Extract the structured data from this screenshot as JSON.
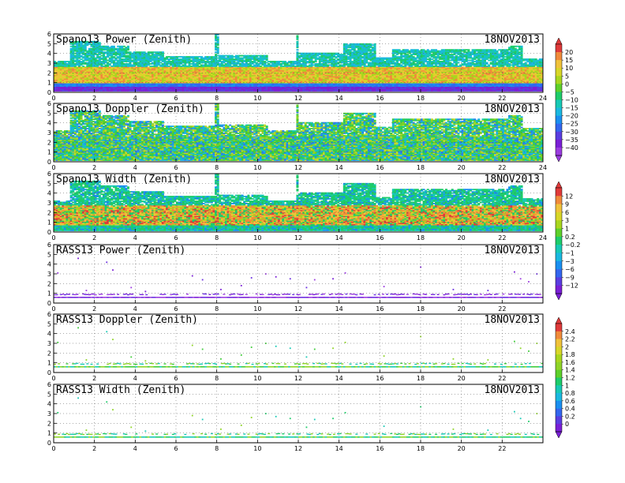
{
  "chart_data": {
    "type": "heatmap",
    "date": "18NOV2013",
    "x": {
      "min": 0,
      "max": 24,
      "ticks": [
        0,
        2,
        4,
        6,
        8,
        10,
        12,
        14,
        16,
        18,
        20,
        22,
        24
      ]
    },
    "y": {
      "min": 0,
      "max": 6,
      "ticks": [
        0,
        1,
        2,
        3,
        4,
        5,
        6
      ]
    },
    "grid": "dotted",
    "panels": [
      {
        "title": "Spano13 Power (Zenith)",
        "kind": "power",
        "x_ticks_shown": [
          0,
          2,
          4,
          6,
          8,
          10,
          12,
          14,
          16,
          18,
          20,
          22,
          24
        ]
      },
      {
        "title": "Spano13 Doppler (Zenith)",
        "kind": "doppler",
        "x_ticks_shown": [
          0,
          2,
          4,
          6,
          8,
          10,
          12,
          14,
          16,
          18,
          20,
          22,
          24
        ]
      },
      {
        "title": "Spano13 Width (Zenith)",
        "kind": "width",
        "x_ticks_shown": [
          0,
          2,
          4,
          6,
          8,
          10,
          12,
          14,
          16,
          18,
          20,
          22,
          24
        ]
      },
      {
        "title": "RASS13 Power (Zenith)",
        "kind": "rass_power",
        "x_ticks_shown": [
          0,
          2,
          4,
          6,
          8,
          10,
          12,
          14,
          16,
          18,
          20,
          22
        ]
      },
      {
        "title": "RASS13 Doppler (Zenith)",
        "kind": "rass_doppler",
        "x_ticks_shown": [
          0,
          2,
          4,
          6,
          8,
          10,
          12,
          14,
          16,
          18,
          20,
          22
        ]
      },
      {
        "title": "RASS13 Width (Zenith)",
        "kind": "rass_width",
        "x_ticks_shown": [
          0,
          2,
          4,
          6,
          8,
          10,
          12,
          14,
          16,
          18,
          20,
          22
        ]
      }
    ],
    "colorbars": [
      {
        "panels": [
          "Spano13 Power (Zenith)",
          "Spano13 Doppler (Zenith)"
        ],
        "labels": [
          "20",
          "15",
          "10",
          "5",
          "0",
          "−5",
          "−10",
          "−15",
          "−20",
          "−25",
          "−30",
          "−35",
          "−40"
        ]
      },
      {
        "panels": [
          "Spano13 Width (Zenith)",
          "RASS13 Power (Zenith)"
        ],
        "labels": [
          "12",
          "9",
          "6",
          "3",
          "1",
          "0.2",
          "−0.2",
          "−1",
          "−3",
          "−6",
          "−9",
          "−12"
        ]
      },
      {
        "panels": [
          "RASS13 Doppler (Zenith)",
          "RASS13 Width (Zenith)"
        ],
        "labels": [
          "2.4",
          "2.2",
          "2",
          "1.8",
          "1.6",
          "1.4",
          "1.2",
          "1",
          "0.8",
          "0.6",
          "0.4",
          "0.2",
          "0"
        ]
      }
    ],
    "echo_top_height_km": [
      {
        "from": 0.0,
        "to": 0.8,
        "top": 3.2
      },
      {
        "from": 0.8,
        "to": 2.2,
        "top": 5.2
      },
      {
        "from": 2.2,
        "to": 3.6,
        "top": 4.7
      },
      {
        "from": 3.6,
        "to": 5.4,
        "top": 4.2
      },
      {
        "from": 5.4,
        "to": 7.9,
        "top": 3.7
      },
      {
        "from": 7.9,
        "to": 8.1,
        "top": 5.9
      },
      {
        "from": 8.1,
        "to": 10.5,
        "top": 3.8
      },
      {
        "from": 10.5,
        "to": 11.8,
        "top": 3.2
      },
      {
        "from": 11.8,
        "to": 12.0,
        "top": 5.8
      },
      {
        "from": 12.0,
        "to": 14.2,
        "top": 4.0
      },
      {
        "from": 14.2,
        "to": 15.8,
        "top": 5.0
      },
      {
        "from": 15.8,
        "to": 16.6,
        "top": 3.6
      },
      {
        "from": 16.6,
        "to": 18.6,
        "top": 4.4
      },
      {
        "from": 18.6,
        "to": 22.3,
        "top": 4.4
      },
      {
        "from": 22.3,
        "to": 23.0,
        "top": 4.8
      },
      {
        "from": 23.0,
        "to": 24.0,
        "top": 3.4
      }
    ],
    "rass_layer_height_km": [
      0.65,
      0.95
    ],
    "rass_scatter_points": [
      {
        "x": 0.2,
        "y": 3.1
      },
      {
        "x": 1.2,
        "y": 4.6
      },
      {
        "x": 1.6,
        "y": 1.3
      },
      {
        "x": 2.6,
        "y": 4.2
      },
      {
        "x": 2.9,
        "y": 3.4
      },
      {
        "x": 3.8,
        "y": 1.6
      },
      {
        "x": 4.5,
        "y": 1.2
      },
      {
        "x": 6.8,
        "y": 2.8
      },
      {
        "x": 7.3,
        "y": 2.4
      },
      {
        "x": 8.2,
        "y": 1.4
      },
      {
        "x": 9.2,
        "y": 1.8
      },
      {
        "x": 9.7,
        "y": 2.6
      },
      {
        "x": 10.4,
        "y": 3.0
      },
      {
        "x": 10.9,
        "y": 2.7
      },
      {
        "x": 11.6,
        "y": 2.5
      },
      {
        "x": 12.4,
        "y": 1.6
      },
      {
        "x": 12.8,
        "y": 2.4
      },
      {
        "x": 13.7,
        "y": 2.5
      },
      {
        "x": 14.3,
        "y": 3.1
      },
      {
        "x": 16.2,
        "y": 1.7
      },
      {
        "x": 18.0,
        "y": 3.7
      },
      {
        "x": 19.6,
        "y": 1.4
      },
      {
        "x": 21.3,
        "y": 1.3
      },
      {
        "x": 22.6,
        "y": 3.2
      },
      {
        "x": 22.9,
        "y": 2.5
      },
      {
        "x": 23.3,
        "y": 2.2
      },
      {
        "x": 23.7,
        "y": 3.0
      }
    ]
  }
}
